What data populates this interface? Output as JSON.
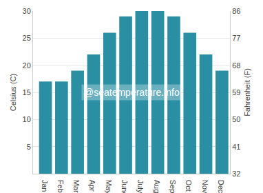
{
  "chart_data": {
    "type": "bar",
    "categories": [
      "Jan",
      "Feb",
      "Mar",
      "Apr",
      "May",
      "June",
      "July",
      "Aug",
      "Sept",
      "Oct",
      "Nov",
      "Dec"
    ],
    "values": [
      17,
      17,
      19,
      22,
      26,
      29,
      30,
      30,
      29,
      26,
      22,
      19
    ],
    "color": "#2a8fa3",
    "ylim": [
      0,
      30
    ],
    "yticks": [
      5,
      10,
      15,
      20,
      25,
      30
    ],
    "y2lim": [
      32,
      86
    ],
    "y2ticks": [
      32,
      41,
      50,
      59,
      68,
      77,
      86
    ],
    "ylabel": "Celsius (C)",
    "y2label": "Fahrenheit (F)",
    "annotations": [
      "@seatemperature.info"
    ],
    "grid": true
  }
}
